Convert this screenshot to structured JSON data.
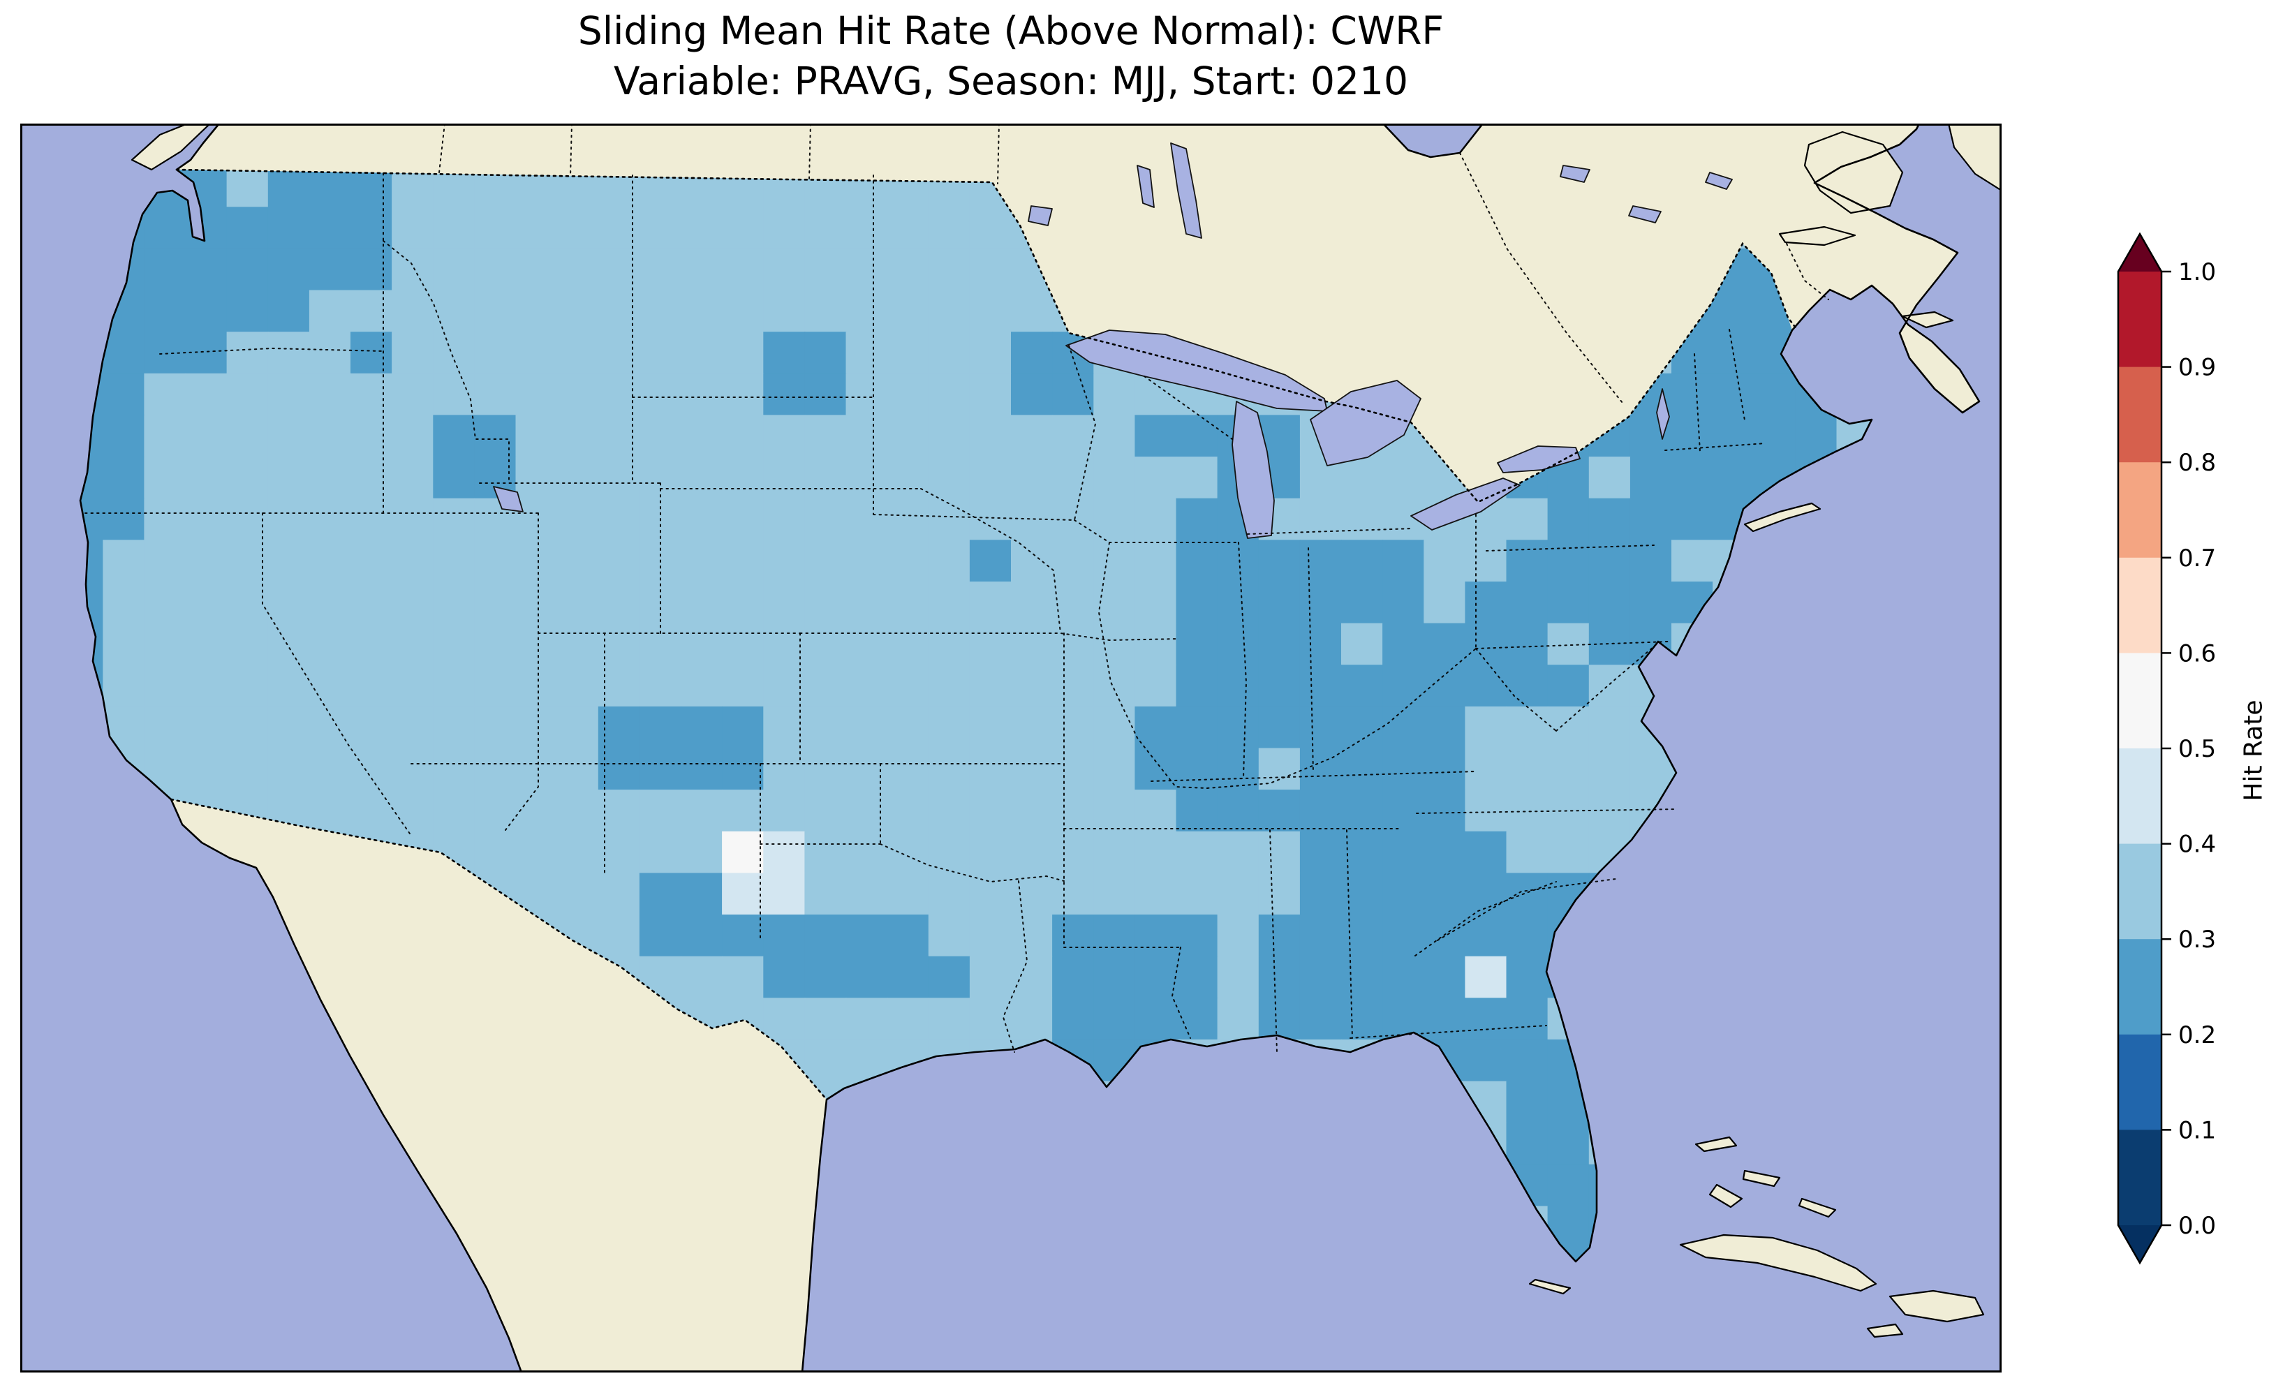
{
  "figure": {
    "title_line1": "Sliding Mean Hit Rate (Above Normal): CWRF",
    "title_line2": "Variable: PRAVG, Season: MJJ, Start: 0210"
  },
  "colorbar": {
    "label": "Hit Rate",
    "tick_labels_top_to_bottom": [
      "1.0",
      "0.9",
      "0.8",
      "0.7",
      "0.6",
      "0.5",
      "0.4",
      "0.3",
      "0.2",
      "0.1",
      "0.0"
    ],
    "bin_colors_top_to_bottom": [
      "#b2182b",
      "#d6604d",
      "#f4a582",
      "#fddbc7",
      "#f7f7f7",
      "#d3e6f1",
      "#99c9e0",
      "#4f9dc9",
      "#2166ac",
      "#0b3d70"
    ],
    "over_color": "#67001f",
    "under_color": "#053061"
  },
  "map_colors": {
    "ocean": "#a3aedd",
    "land": "#f0edd6",
    "lake": "#a8b2e2",
    "coastline": "#000000"
  },
  "chart_data": {
    "type": "heatmap",
    "title": "Sliding Mean Hit Rate (Above Normal): CWRF",
    "subtitle": "Variable: PRAVG, Season: MJJ, Start: 0210",
    "metric": "Sliding Mean Hit Rate (Above Normal)",
    "model": "CWRF",
    "variable": "PRAVG",
    "season": "MJJ",
    "start": "0210",
    "region": "Contiguous United States",
    "colorbar_label": "Hit Rate",
    "colorbar_ticks": [
      0.0,
      0.1,
      0.2,
      0.3,
      0.4,
      0.5,
      0.6,
      0.7,
      0.8,
      0.9,
      1.0
    ],
    "colormap": "RdBu_r, discrete 0.1 bins, extended both ends",
    "value_key": {
      "a": 0.35,
      "b": 0.25,
      "c": 0.45,
      "d": 0.55
    },
    "value_bins": {
      "a": "0.3-0.4",
      "b": "0.2-0.3",
      "c": "0.4-0.5",
      "d": "0.5-0.6"
    },
    "cell_colors": {
      "a": "#99c9e0",
      "b": "#4f9dc9",
      "c": "#d3e6f1",
      "d": "#f7f7f7"
    },
    "grid_cols": 48,
    "grid_rows": 30,
    "grid": [
      "aaabbbbbbaaaaaaaaaaaaaaaaaaaaaaaaaaaaaaaaaaaaaaa",
      "aaabbabbbaaaaaaaaaaaaaaaaaaaaaaaaaaaaaaaaaaaaaaa",
      "aabbbbbbbaaaaaaaaaaaaaaaaaaaaaaaaaaaaaaaaaaaaaaa",
      "aabbbbbbbaaaaaaaaaaaaaaaaaaaaaaaaaaaaaabbbbaaaa",
      "abbbbbbaaaaaaaaaaaaaaaaaaaaaaaaaaaaaaaabbbbaaaa",
      "abbbbaaabaaaaaaaaabbaaaabbaaaaaaaaaaaaaabbbbaaaa",
      "abbaaaaaaaaaaaaaaabbaaaabbaaaaaaaaaaaaabbbbbaaaa",
      "abbaaaaaaabbaaaaaaaaaaaaaaabbbbaaaaabbbbbbbbaaaa",
      "bbbaaaaaaabbaaaaaaaaaaaaaaaaabbaaaaabbabbbbbaaaa",
      "bbbaaaaaaaaaaaaaaaaaaaaaaaaabbaaaaaaabbbbbaaaaaa",
      "bbaaaaaaaaaaaaaaaaaaaaabaaaabbbbbbaabbbbaaaaaaaa",
      "bbaaaaaaaaaaaaaaaaaaaaaaaaaabbbbbbabbbbbbaaaaaaa",
      "bbaaaaaaaaaaaaaaaaaaaaaaaaaabbbbabbbbabbaaaaaaaa",
      "abaaaaaaaaaaaaaaaaaaaaaaaaaabbbbbbbbbbaaaaaaaaaa",
      "aaaaaaaaaaaaaabbbbaaaaaaaaabbbbbbbbaaaaaaaaaaaaa",
      "aaaaaaaaaaaaaabbbbaaaaaaaaabbbabbbbaaaaaaaaaaaaa",
      "aaaaaaaaaaaaaaaaaaaaaaaaaaaabbbbbbbaaaaaaaaaaaaa",
      "aaaaaaaaaaaaaaaaadcaaaaaaaaaaaabbbbbaaaaaaaaaaaa",
      "aaaaaaaaaaaaaaabbccaaaaaaaaaaaabbbbbbbbaaaaaaaaa",
      "aaaaaaaaaaaaaaabbbbbbbaaabbbbabbbbbbbbaaaaaaaaaa",
      "aaaaaaaaaaaaaaaaaabbbbbaabbbbabbbbbcbbaaaaaaaaaa",
      "aaaaaaaaaaaaaaaaaaaaaaaaabbbbabbbbbbbaaaaaaaaaaa",
      "aaaaaaaaaaaaaaaaaaaaaaaaabbbaaaaaabbbbaaaaaaaaaa",
      "aaaaaaaaaaaaaaaaaaaaaaaaaaaaaaaaaaaabbaaaaaaaaaa",
      "aaaaaaaaaaaaaaaaaaaaaaaaaaaaaaaaaaaabbaaaaaaaaaa",
      "aaaaaaaaaaaaaaaaaaaaaaaaaaaaaaaaaaaabbbaaaaaaaaa",
      "aaaaaaaaaaaaaaaaaaaaaaaaaaaaaaaaaaaaabbaaaaaaaaa",
      "aaaaaaaaaaaaaaaaaaaaaaaaaaaaaaaaaaaaabaaaaaaaaaa",
      "aaaaaaaaaaaaaaaaaaaaaaaaaaaaaaaaaaaaaaaaaaaaaaaa",
      "aaaaaaaaaaaaaaaaaaaaaaaaaaaaaaaaaaaaaaaaaaaaaaaa"
    ]
  }
}
